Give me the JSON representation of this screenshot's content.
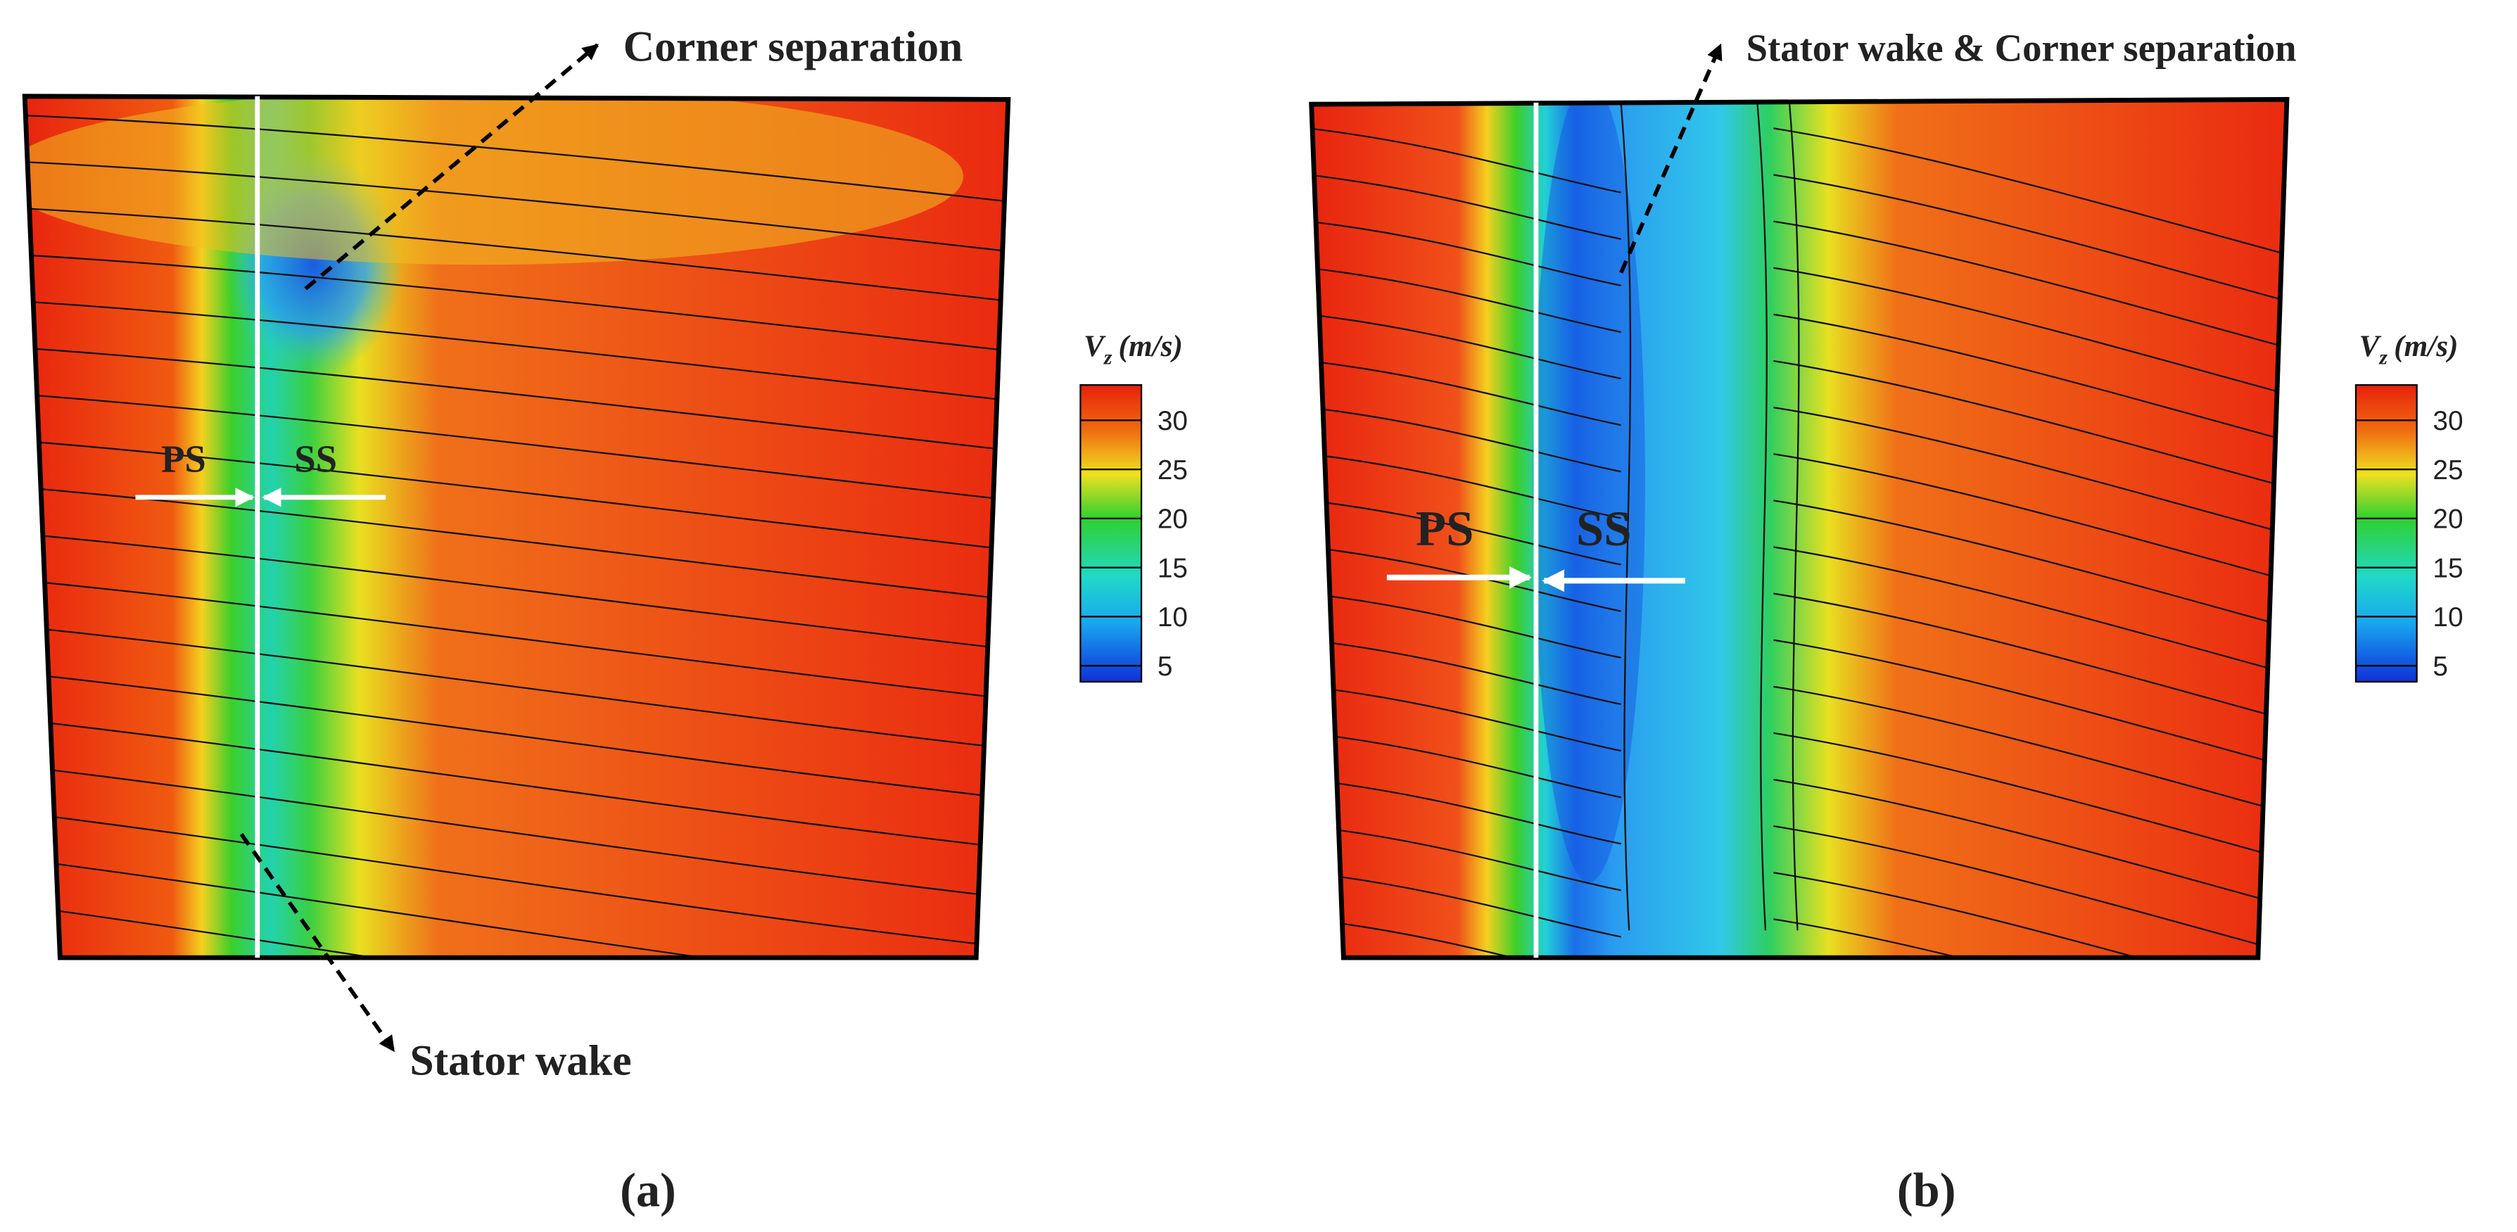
{
  "panels": [
    {
      "annotations": [
        "Corner separation",
        "Stator wake"
      ],
      "ps": "PS",
      "ss": "SS",
      "colorbar": {
        "title": "V",
        "title_sub": "z",
        "title_unit": "(m/s)",
        "ticks": [
          "30",
          "25",
          "20",
          "15",
          "10",
          "5"
        ]
      },
      "label": "(a)"
    },
    {
      "annotations": [
        "Stator wake & Corner separation"
      ],
      "ps": "PS",
      "ss": "SS",
      "colorbar": {
        "title": "V",
        "title_sub": "z",
        "title_unit": "(m/s)",
        "ticks": [
          "30",
          "25",
          "20",
          "15",
          "10",
          "5"
        ]
      },
      "label": "(b)"
    }
  ]
}
